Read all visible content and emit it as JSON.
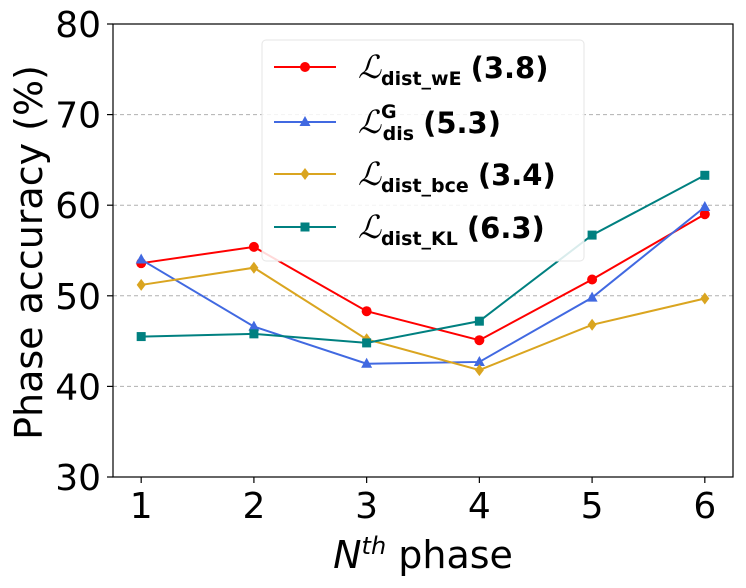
{
  "chart_data": {
    "type": "line",
    "title": "",
    "xlabel_main": "N",
    "xlabel_sup": "th",
    "xlabel_rest": " phase",
    "ylabel": "Phase accuracy (%)",
    "x": [
      1,
      2,
      3,
      4,
      5,
      6
    ],
    "x_ticks": [
      "1",
      "2",
      "3",
      "4",
      "5",
      "6"
    ],
    "xlim": [
      0.75,
      6.25
    ],
    "ylim": [
      30,
      80
    ],
    "y_ticks": [
      "30",
      "40",
      "50",
      "60",
      "70",
      "80"
    ],
    "y_tick_values": [
      30,
      40,
      50,
      60,
      70,
      80
    ],
    "grid": "horizontal dashed at 40, 50, 60, 70",
    "legend_position": "top-center",
    "series": [
      {
        "name": "L_dist_wE (3.8)",
        "script": "ℒ",
        "sub": "dist_wE",
        "sup": "",
        "score": "(3.8)",
        "color": "#ff0000",
        "marker": "circle",
        "values": [
          53.6,
          55.4,
          48.3,
          45.1,
          51.8,
          59.0
        ]
      },
      {
        "name": "L_dis^G (5.3)",
        "script": "ℒ",
        "sub": "dis",
        "sup": "G",
        "score": "(5.3)",
        "color": "#4169e1",
        "marker": "triangle",
        "values": [
          54.0,
          46.6,
          42.5,
          42.7,
          49.8,
          59.8
        ]
      },
      {
        "name": "L_dist_bce (3.4)",
        "script": "ℒ",
        "sub": "dist_bce",
        "sup": "",
        "score": "(3.4)",
        "color": "#daa520",
        "marker": "diamond",
        "values": [
          51.2,
          53.1,
          45.2,
          41.8,
          46.8,
          49.7
        ]
      },
      {
        "name": "L_dist_KL (6.3)",
        "script": "ℒ",
        "sub": "dist_KL",
        "sup": "",
        "score": "(6.3)",
        "color": "#008080",
        "marker": "square",
        "values": [
          45.5,
          45.8,
          44.8,
          47.2,
          56.7,
          63.3
        ]
      }
    ]
  }
}
